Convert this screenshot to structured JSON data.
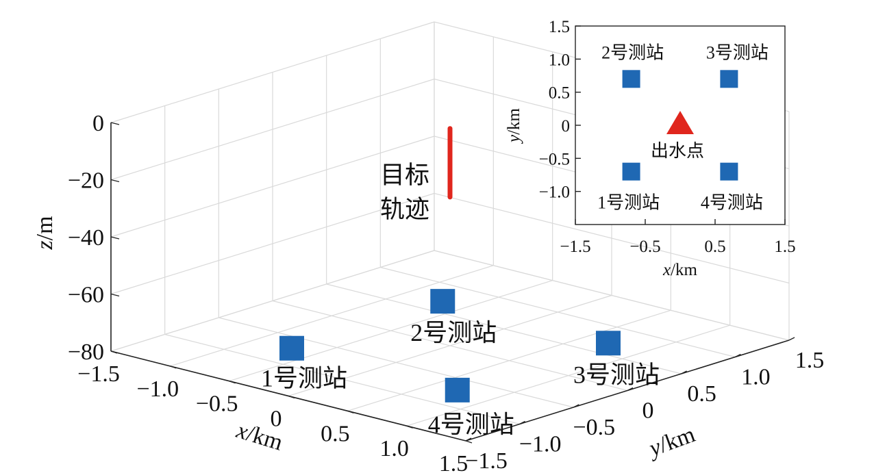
{
  "chart_data": [
    {
      "type": "scatter3d",
      "xlabel": "x/km",
      "ylabel": "y/km",
      "zlabel": "z/m",
      "xlim": [
        -1.5,
        1.5
      ],
      "ylim": [
        -1.5,
        1.5
      ],
      "zlim": [
        -80,
        0
      ],
      "xticks": [
        "−1.5",
        "−1.0",
        "−0.5",
        "0",
        "0.5",
        "1.0",
        "1.5"
      ],
      "yticks": [
        "−1.5",
        "−1.0",
        "−0.5",
        "0",
        "0.5",
        "1.0",
        "1.5"
      ],
      "zticks": [
        "0",
        "−20",
        "−40",
        "−60",
        "−80"
      ],
      "grid": true,
      "stations": [
        {
          "label": "1号测站",
          "x": -0.7,
          "y": -0.7,
          "z": -80,
          "color": "#1f68b3"
        },
        {
          "label": "2号测站",
          "x": -0.7,
          "y": 0.7,
          "z": -80,
          "color": "#1f68b3"
        },
        {
          "label": "3号测站",
          "x": 0.7,
          "y": 0.7,
          "z": -80,
          "color": "#1f68b3"
        },
        {
          "label": "4号测站",
          "x": 0.7,
          "y": -0.7,
          "z": -80,
          "color": "#1f68b3"
        }
      ],
      "trajectory": {
        "label_line1": "目标",
        "label_line2": "轨迹",
        "x": 0,
        "y": 0,
        "z_range": [
          -28,
          -4
        ],
        "color": "#e0261d"
      }
    },
    {
      "type": "scatter",
      "xlabel": "x/km",
      "ylabel": "y/km",
      "xlim": [
        -1.5,
        1.5
      ],
      "ylim": [
        -1.5,
        1.5
      ],
      "xticks": [
        "−1.5",
        "−0.5",
        "0.5",
        "1.5"
      ],
      "yticks": [
        "1.5",
        "1.0",
        "0.5",
        "0",
        "−0.5",
        "−1.0"
      ],
      "stations": [
        {
          "label": "1号测站",
          "x": -0.7,
          "y": -0.7,
          "color": "#1f68b3"
        },
        {
          "label": "2号测站",
          "x": -0.7,
          "y": 0.7,
          "color": "#1f68b3"
        },
        {
          "label": "3号测站",
          "x": 0.7,
          "y": 0.7,
          "color": "#1f68b3"
        },
        {
          "label": "4号测站",
          "x": 0.7,
          "y": -0.7,
          "color": "#1f68b3"
        }
      ],
      "exit_point": {
        "label": "出水点",
        "x": 0,
        "y": 0,
        "color": "#e0261d"
      }
    }
  ]
}
